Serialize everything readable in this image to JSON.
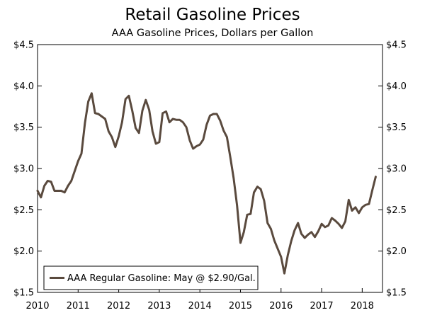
{
  "chart_data": {
    "type": "line",
    "title": "Retail Gasoline Prices",
    "subtitle": "AAA Gasoline Prices, Dollars per Gallon",
    "xlabel": "",
    "ylabel": "",
    "xlim": [
      2010.0,
      2018.5
    ],
    "ylim": [
      1.5,
      4.5
    ],
    "y_ticks": [
      1.5,
      2.0,
      2.5,
      3.0,
      3.5,
      4.0,
      4.5
    ],
    "y_tick_labels": [
      "$1.5",
      "$2.0",
      "$2.5",
      "$3.0",
      "$3.5",
      "$4.0",
      "$4.5"
    ],
    "x_ticks": [
      2010,
      2011,
      2012,
      2013,
      2014,
      2015,
      2016,
      2017,
      2018
    ],
    "x_tick_labels": [
      "2010",
      "2011",
      "2012",
      "2013",
      "2014",
      "2015",
      "2016",
      "2017",
      "2018"
    ],
    "grid": false,
    "legend_position": "bottom-left",
    "series": [
      {
        "name": "AAA Regular Gasoline: May @ $2.90/Gal.",
        "color": "#5a4a3e",
        "x": [
          2010.0,
          2010.083,
          2010.167,
          2010.25,
          2010.333,
          2010.417,
          2010.5,
          2010.583,
          2010.667,
          2010.75,
          2010.833,
          2010.917,
          2011.0,
          2011.083,
          2011.167,
          2011.25,
          2011.333,
          2011.417,
          2011.5,
          2011.583,
          2011.667,
          2011.75,
          2011.833,
          2011.917,
          2012.0,
          2012.083,
          2012.167,
          2012.25,
          2012.333,
          2012.417,
          2012.5,
          2012.583,
          2012.667,
          2012.75,
          2012.833,
          2012.917,
          2013.0,
          2013.083,
          2013.167,
          2013.25,
          2013.333,
          2013.417,
          2013.5,
          2013.583,
          2013.667,
          2013.75,
          2013.833,
          2013.917,
          2014.0,
          2014.083,
          2014.167,
          2014.25,
          2014.333,
          2014.417,
          2014.5,
          2014.583,
          2014.667,
          2014.75,
          2014.833,
          2014.917,
          2015.0,
          2015.083,
          2015.167,
          2015.25,
          2015.333,
          2015.417,
          2015.5,
          2015.583,
          2015.667,
          2015.75,
          2015.833,
          2015.917,
          2016.0,
          2016.083,
          2016.167,
          2016.25,
          2016.333,
          2016.417,
          2016.5,
          2016.583,
          2016.667,
          2016.75,
          2016.833,
          2016.917,
          2017.0,
          2017.083,
          2017.167,
          2017.25,
          2017.333,
          2017.417,
          2017.5,
          2017.583,
          2017.667,
          2017.75,
          2017.833,
          2017.917,
          2018.0,
          2018.083,
          2018.167,
          2018.25,
          2018.333
        ],
        "values": [
          2.73,
          2.65,
          2.79,
          2.85,
          2.84,
          2.73,
          2.73,
          2.73,
          2.71,
          2.79,
          2.85,
          2.97,
          3.09,
          3.18,
          3.55,
          3.81,
          3.91,
          3.67,
          3.66,
          3.63,
          3.6,
          3.45,
          3.38,
          3.26,
          3.39,
          3.56,
          3.84,
          3.88,
          3.7,
          3.49,
          3.43,
          3.7,
          3.83,
          3.71,
          3.45,
          3.3,
          3.32,
          3.67,
          3.69,
          3.56,
          3.6,
          3.59,
          3.59,
          3.56,
          3.5,
          3.34,
          3.24,
          3.27,
          3.29,
          3.35,
          3.53,
          3.64,
          3.66,
          3.66,
          3.58,
          3.46,
          3.38,
          3.14,
          2.88,
          2.55,
          2.1,
          2.23,
          2.44,
          2.45,
          2.71,
          2.78,
          2.75,
          2.61,
          2.34,
          2.27,
          2.13,
          2.03,
          1.93,
          1.73,
          1.95,
          2.12,
          2.25,
          2.34,
          2.21,
          2.16,
          2.2,
          2.23,
          2.17,
          2.24,
          2.33,
          2.29,
          2.31,
          2.4,
          2.37,
          2.33,
          2.28,
          2.36,
          2.62,
          2.49,
          2.53,
          2.46,
          2.53,
          2.56,
          2.57,
          2.74,
          2.9
        ]
      }
    ]
  }
}
